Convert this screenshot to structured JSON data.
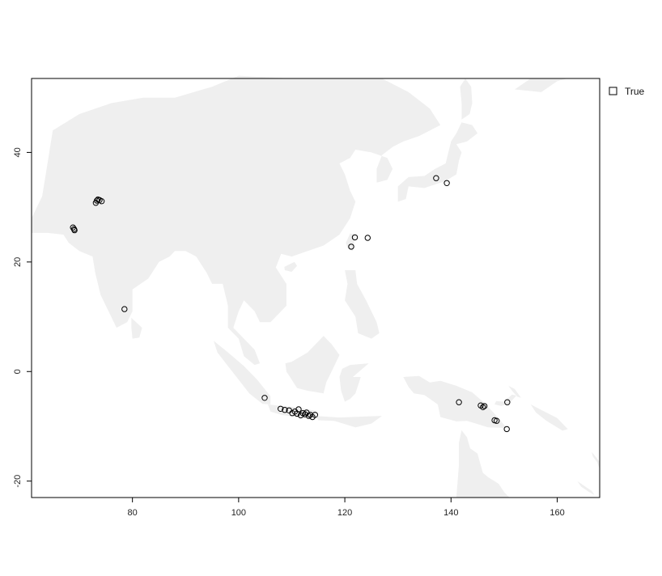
{
  "chart_data": {
    "type": "scatter",
    "title": "",
    "xlabel": "",
    "ylabel": "",
    "xlim": [
      61,
      168
    ],
    "ylim": [
      -23,
      53.5
    ],
    "x_ticks": [
      80,
      100,
      120,
      140,
      160
    ],
    "y_ticks": [
      -20,
      0,
      20,
      40
    ],
    "grid": false,
    "basemap": "Asia-Pacific land outline (light grey)",
    "land_color": "#efefef",
    "point_color": "#000000",
    "legend": {
      "position": "right",
      "entries": [
        "True"
      ]
    },
    "series": [
      {
        "name": "True",
        "x": [
          68.8,
          69.0,
          69.1,
          73.1,
          73.3,
          73.5,
          73.8,
          74.2,
          78.5,
          121.2,
          121.9,
          124.3,
          137.2,
          139.2,
          104.9,
          107.9,
          108.7,
          109.5,
          110.1,
          110.6,
          111.0,
          111.3,
          111.7,
          112.1,
          112.5,
          112.8,
          113.2,
          113.5,
          113.9,
          114.4,
          141.5,
          145.6,
          146.0,
          146.3,
          148.2,
          148.6,
          150.5,
          150.6
        ],
        "y": [
          26.3,
          26.0,
          25.8,
          30.8,
          31.2,
          31.4,
          31.3,
          31.1,
          11.4,
          22.8,
          24.5,
          24.4,
          35.3,
          34.4,
          -4.8,
          -6.8,
          -7.0,
          -7.1,
          -7.6,
          -7.3,
          -7.7,
          -6.9,
          -8.0,
          -7.6,
          -7.8,
          -7.5,
          -8.1,
          -7.9,
          -8.3,
          -7.9,
          -5.6,
          -6.2,
          -6.5,
          -6.3,
          -8.9,
          -9.0,
          -10.5,
          -5.6
        ]
      }
    ]
  }
}
